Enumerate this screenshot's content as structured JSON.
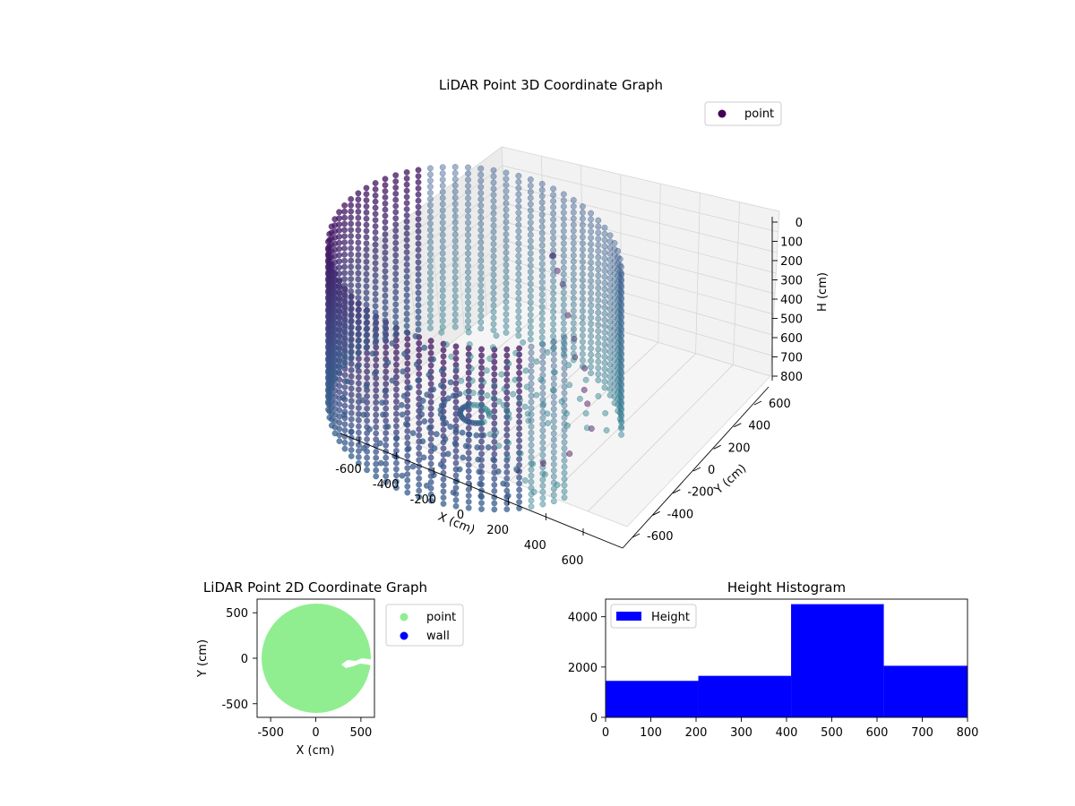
{
  "chart_data": [
    {
      "type": "scatter",
      "projection": "3d",
      "title": "LiDAR Point 3D Coordinate Graph",
      "xlabel": "X (cm)",
      "ylabel": "Y (cm)",
      "zlabel": "H (cm)",
      "xlim": [
        -650,
        650
      ],
      "ylim": [
        -650,
        650
      ],
      "zlim": [
        800,
        0
      ],
      "x_ticks": [
        "-600",
        "-400",
        "-200",
        "0",
        "200",
        "400",
        "600"
      ],
      "y_ticks": [
        "-600",
        "-400",
        "-200",
        "0",
        "200",
        "400",
        "600"
      ],
      "z_ticks": [
        "0",
        "100",
        "200",
        "300",
        "400",
        "500",
        "600",
        "700",
        "800"
      ],
      "grid": true,
      "legend": {
        "position": "top-right",
        "entries": [
          "point"
        ]
      },
      "series": [
        {
          "name": "point",
          "colormap": "viridis",
          "shape": "cylindrical wall of radius about 600 cm with an inner floor and an opening toward +X",
          "wall_radius": 600,
          "height_range": [
            0,
            800
          ]
        }
      ],
      "colors": {
        "near_top": "#440154",
        "mid": "#3b528b",
        "deep": "#21918c"
      }
    },
    {
      "type": "scatter",
      "title": "LiDAR Point 2D Coordinate Graph",
      "xlabel": "X (cm)",
      "ylabel": "Y (cm)",
      "xlim": [
        -650,
        650
      ],
      "ylim": [
        -650,
        650
      ],
      "x_ticks": [
        "-500",
        "0",
        "500"
      ],
      "y_ticks": [
        "-500",
        "0",
        "500"
      ],
      "legend": {
        "position": "outside-right",
        "entries": [
          "point",
          "wall"
        ]
      },
      "series": [
        {
          "name": "point",
          "color": "#90ee90",
          "shape": "filled disc of radius about 600 cm with a notch opening at +X"
        },
        {
          "name": "wall",
          "color": "#0000ff"
        }
      ]
    },
    {
      "type": "bar",
      "title": "Height Histogram",
      "xlim": [
        0,
        800
      ],
      "ylim": [
        0,
        4700
      ],
      "x_ticks": [
        "0",
        "100",
        "200",
        "300",
        "400",
        "500",
        "600",
        "700",
        "800"
      ],
      "y_ticks": [
        "0",
        "2000",
        "4000"
      ],
      "bins": [
        [
          0,
          205
        ],
        [
          205,
          410
        ],
        [
          410,
          615
        ],
        [
          615,
          820
        ]
      ],
      "values": [
        1450,
        1650,
        4500,
        2050
      ],
      "legend": {
        "position": "top-left",
        "entries": [
          "Height"
        ]
      },
      "series": [
        {
          "name": "Height",
          "color": "#0000ff"
        }
      ]
    }
  ]
}
